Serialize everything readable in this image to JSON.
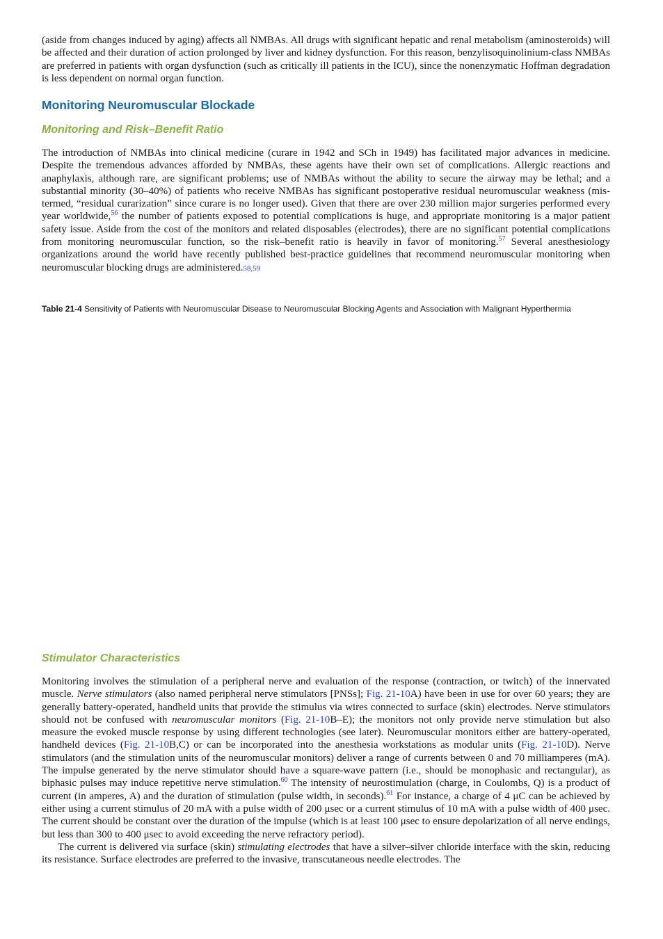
{
  "intro": {
    "paragraph": [
      "(aside from changes induced by aging) affects all NMBAs. All drugs with significant hepatic and renal metabolism (aminosteroids) will be affected and their duration of action prolonged by liver and kidney dysfunction. For this reason, benzylisoquinolinium-class NMBAs are preferred in patients with organ dysfunction (such as critically ill patients in the ICU), since the nonenzymatic Hoffman degradation is less dependent on normal organ function."
    ]
  },
  "section": {
    "heading": "Monitoring Neuromuscular Blockade",
    "subheading": "Monitoring and Risk–Benefit Ratio",
    "paragraph": [
      "The introduction of NMBAs into clinical medicine (curare in 1942 and SCh in 1949) has facilitated major advances in medicine. Despite the tremendous advances afforded by NMBAs, these agents have their own set of complications. Allergic reactions and anaphylaxis, although rare, are significant problems; use of NMBAs without the ability to secure the airway may be lethal; and a substantial minority (30–40%) of patients who receive NMBAs has significant postoperative residual neuromuscular weakness (mis-termed, “residual curarization” since curare is no longer used). Given that there are over 230 million major surgeries performed every year worldwide,",
      "56",
      " the number of patients exposed to potential complications is huge, and appropriate monitoring is a major patient safety issue. Aside from the cost of the monitors and related disposables (electrodes), there are no significant potential complications from monitoring neuromuscular function, so the risk–benefit ratio is heavily in favor of monitoring.",
      "57",
      " Several anesthesiology organizations around the world have recently published best-practice guidelines that recommend neuromuscular monitoring when neuromuscular blocking drugs are administered.",
      "58,59"
    ],
    "table": {
      "label": "Table 21-4",
      "caption": " Sensitivity of Patients with Neuromuscular Disease to Neuromuscular Blocking Agents and Association with Malignant Hyperthermia"
    }
  },
  "subsection": {
    "heading": "Stimulator Characteristics",
    "paragraphs": [
      [
        "Monitoring involves the stimulation of a peripheral nerve and evaluation of the response (contraction, or twitch) of the innervated muscle. ",
        "Nerve stimulators",
        " (also named peripheral nerve stimulators [PNSs]; ",
        "Fig. 21-10",
        "A) have been in use for over 60 years; they are generally battery-operated, handheld units that provide the stimulus via wires connected to surface (skin) electrodes. Nerve stimulators should not be confused with ",
        "neuromuscular monitors",
        " (",
        "Fig. 21-10",
        "B–E); the monitors not only provide nerve stimulation but also measure the evoked muscle response by using different technologies (see later). Neuromuscular monitors either are battery-operated, handheld devices (",
        "Fig. 21-10",
        "B,C) or can be incorporated into the anesthesia workstations as modular units (",
        "Fig. 21-10",
        "D). Nerve stimulators (and the stimulation units of the neuromuscular monitors) deliver a range of currents between 0 and 70 milliamperes (mA). The impulse generated by the nerve stimulator should have a square-wave pattern (i.e., should be monophasic and rectangular), as biphasic pulses may induce repetitive nerve stimulation.",
        "60",
        " The intensity of neurostimulation (charge, in Coulombs, Q) is a product of current (in amperes, A) and the duration of stimulation (pulse width, in seconds).",
        "61",
        " For instance, a charge of 4 μC can be achieved by either using a current stimulus of 20 mA with a pulse width of 200 μsec or a current stimulus of 10 mA with a pulse width of 400 μsec. The current should be constant over the duration of the impulse (which is at least 100 μsec to ensure depolarization of all nerve endings, but less than 300 to 400 μsec to avoid exceeding the nerve refractory period)."
      ],
      [
        "The current is delivered via surface (skin) ",
        "stimulating electrodes",
        " that have a silver–silver chloride interface with the skin, reducing its resistance. Surface electrodes are preferred to the invasive, transcutaneous needle electrodes. The"
      ]
    ]
  }
}
